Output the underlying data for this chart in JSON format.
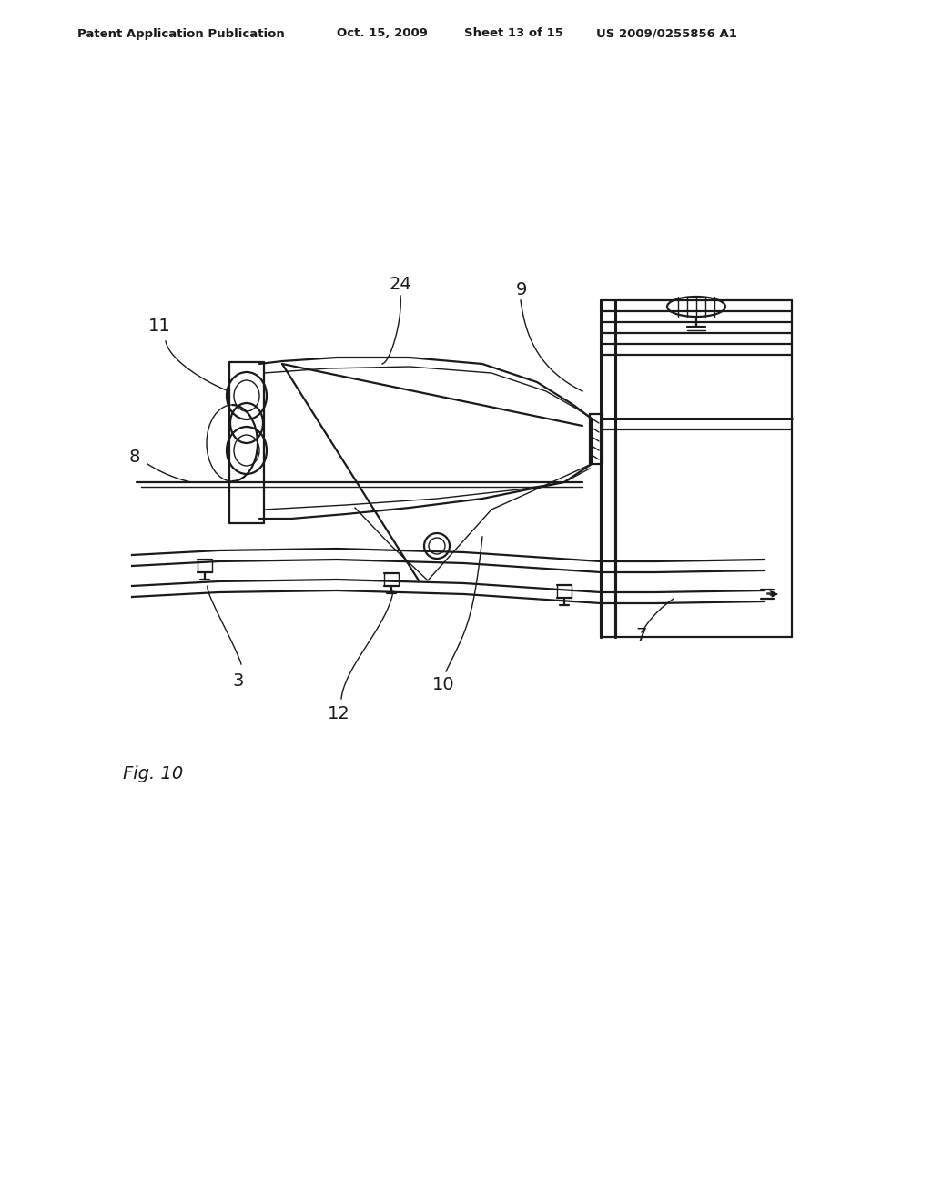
{
  "bg_color": "#ffffff",
  "line_color": "#1a1a1a",
  "header_text": "Patent Application Publication",
  "header_date": "Oct. 15, 2009",
  "header_sheet": "Sheet 13 of 15",
  "header_patent": "US 2009/0255856 A1",
  "fig_label": "Fig. 10"
}
